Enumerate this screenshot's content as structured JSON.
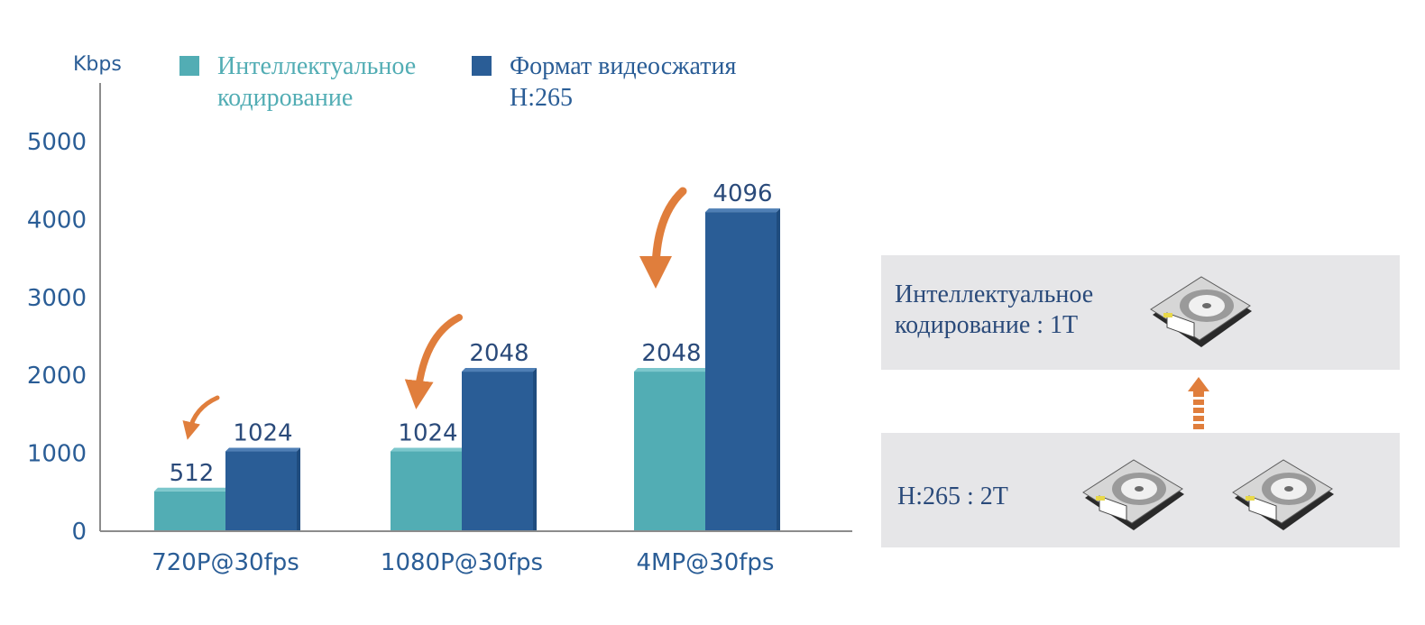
{
  "chart_data": {
    "type": "bar",
    "ylabel": "Kbps",
    "xlabel": "",
    "categories": [
      "720P@30fps",
      "1080P@30fps",
      "4MP@30fps"
    ],
    "series": [
      {
        "name": "Интеллектуальное кодирование",
        "values": [
          512,
          1024,
          2048
        ],
        "color": "#52adb4"
      },
      {
        "name": "Формат видеосжатия H:265",
        "values": [
          1024,
          2048,
          4096
        ],
        "color": "#2a5d96"
      }
    ],
    "ylim": [
      0,
      5000
    ],
    "yticks": [
      "0",
      "1000",
      "2000",
      "3000",
      "4000",
      "5000"
    ],
    "data_labels": [
      [
        "512",
        "1024",
        "2048"
      ],
      [
        "1024",
        "2048",
        "4096"
      ]
    ],
    "legend_position": "top",
    "grid": false,
    "arrow_color": "#e07e3c"
  },
  "legend": {
    "items": [
      {
        "line1": "Интеллектуальное",
        "line2": "кодирование",
        "color": "#52adb4"
      },
      {
        "line1": "Формат видеосжатия",
        "line2": "H:265",
        "color": "#2a5d96"
      }
    ]
  },
  "storage": {
    "top_panel": {
      "line1": "Интеллектуальное",
      "line2": "кодирование : 1T",
      "disks": 1
    },
    "bottom_panel": {
      "label": "H:265 : 2T",
      "disks": 2
    },
    "arrow_color": "#e07e3c",
    "icon": "hard-drive-icon"
  }
}
